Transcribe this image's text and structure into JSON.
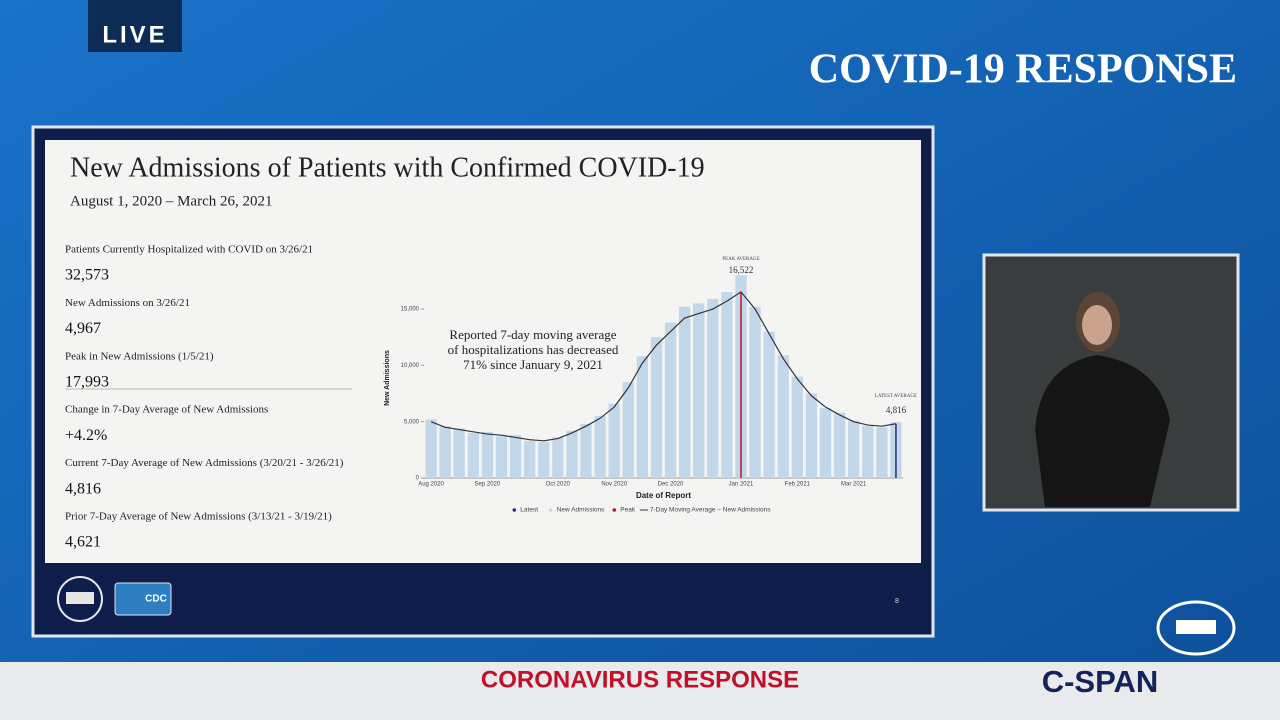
{
  "broadcast": {
    "live": "LIVE",
    "banner": "COVID-19 RESPONSE",
    "lower_third": "CORONAVIRUS RESPONSE",
    "network": "C-SPAN"
  },
  "slide": {
    "title": "New Admissions of Patients with Confirmed COVID-19",
    "subtitle": "August 1, 2020 – March 26, 2021",
    "stats": [
      {
        "label": "Patients Currently Hospitalized with COVID on 3/26/21",
        "value": "32,573"
      },
      {
        "label": "New Admissions on 3/26/21",
        "value": "4,967"
      },
      {
        "label": "Peak in New Admissions (1/5/21)",
        "value": "17,993"
      },
      {
        "label": "Change in 7-Day Average of New Admissions",
        "value": "+4.2%"
      },
      {
        "label": "Current 7-Day Average of New Admissions (3/20/21 - 3/26/21)",
        "value": "4,816"
      },
      {
        "label": "Prior 7-Day Average of New Admissions (3/13/21 - 3/19/21)",
        "value": "4,621"
      }
    ],
    "logo": "CDC",
    "page_number": "8"
  },
  "chart_data": {
    "type": "bar",
    "x_label": "Date of Report",
    "y_label": "New Admissions",
    "annotation": [
      "Reported 7-day moving average",
      "of hospitalizations has decreased",
      "71% since January 9, 2021"
    ],
    "categories": [
      "Aug 2020",
      null,
      null,
      null,
      "Sep 2020",
      null,
      null,
      null,
      null,
      "Oct 2020",
      null,
      null,
      null,
      "Nov 2020",
      null,
      null,
      null,
      "Dec 2020",
      null,
      null,
      null,
      null,
      "Jan 2021",
      null,
      null,
      null,
      "Feb 2021",
      null,
      null,
      null,
      "Mar 2021",
      null,
      null,
      null
    ],
    "series": [
      {
        "name": "New Admissions",
        "type": "bar",
        "color": "#c3d7ea",
        "values": [
          5200,
          4600,
          4400,
          4000,
          4100,
          3700,
          3800,
          3300,
          3200,
          3600,
          4200,
          4800,
          5500,
          6600,
          8500,
          10800,
          12500,
          13800,
          15200,
          15500,
          15900,
          16500,
          17993,
          15200,
          13000,
          10900,
          9000,
          7500,
          6200,
          5800,
          5100,
          4600,
          4500,
          4967
        ]
      },
      {
        "name": "7-Day Moving Average – New Admissions",
        "type": "line",
        "color": "#333333",
        "values": [
          5000,
          4500,
          4300,
          4100,
          3900,
          3800,
          3600,
          3400,
          3300,
          3500,
          4000,
          4600,
          5300,
          6300,
          8000,
          10200,
          11800,
          13000,
          14200,
          14600,
          15000,
          15700,
          16522,
          15000,
          12800,
          10600,
          8800,
          7300,
          6300,
          5600,
          5000,
          4700,
          4600,
          4816
        ]
      }
    ],
    "peak": {
      "name": "Peak",
      "label": "PEAK AVERAGE",
      "value": 16522,
      "value_label": "16,522",
      "color": "#c0102a"
    },
    "latest": {
      "name": "Latest",
      "label": "LATEST AVERAGE",
      "value": 4816,
      "value_label": "4,816",
      "color": "#1f2f7a"
    },
    "ylim": [
      0,
      18500
    ],
    "yticks": [
      0,
      {
        "value": 5000,
        "label": "5,000"
      },
      {
        "value": 10000,
        "label": "10,000"
      },
      {
        "value": 15000,
        "label": "15,000"
      }
    ]
  }
}
